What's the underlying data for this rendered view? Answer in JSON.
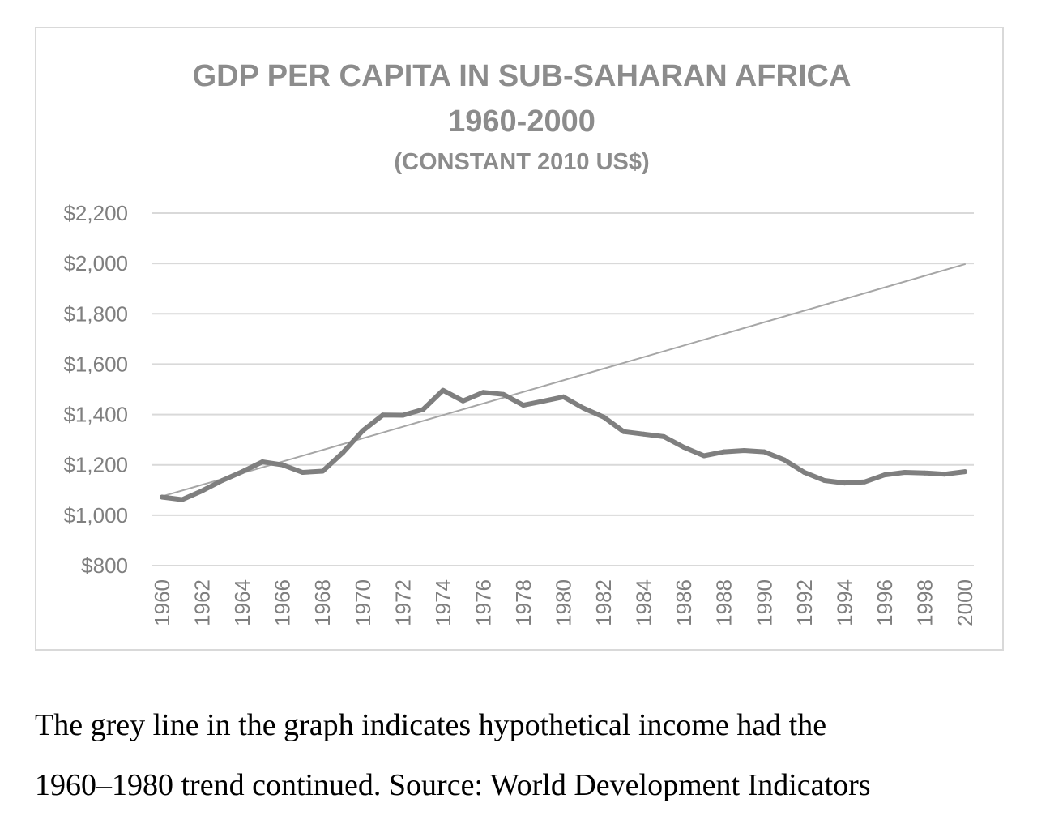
{
  "chart_data": {
    "type": "line",
    "title": "GDP PER CAPITA IN SUB-SAHARAN AFRICA",
    "subtitle": "1960-2000",
    "subtitle2": "(CONSTANT 2010 US$)",
    "xlabel": "",
    "ylabel": "",
    "ylim": [
      800,
      2200
    ],
    "y_ticks": [
      {
        "value": 800,
        "label": "$800"
      },
      {
        "value": 1000,
        "label": "$1,000"
      },
      {
        "value": 1200,
        "label": "$1,200"
      },
      {
        "value": 1400,
        "label": "$1,400"
      },
      {
        "value": 1600,
        "label": "$1,600"
      },
      {
        "value": 1800,
        "label": "$1,800"
      },
      {
        "value": 2000,
        "label": "$2,000"
      },
      {
        "value": 2200,
        "label": "$2,200"
      }
    ],
    "x_tick_labels": [
      "1960",
      "1962",
      "1964",
      "1966",
      "1968",
      "1970",
      "1972",
      "1974",
      "1976",
      "1978",
      "1980",
      "1982",
      "1984",
      "1986",
      "1988",
      "1990",
      "1992",
      "1994",
      "1996",
      "1998",
      "2000"
    ],
    "grid": true,
    "legend": "none",
    "x": [
      1960,
      1961,
      1962,
      1963,
      1964,
      1965,
      1966,
      1967,
      1968,
      1969,
      1970,
      1971,
      1972,
      1973,
      1974,
      1975,
      1976,
      1977,
      1978,
      1979,
      1980,
      1981,
      1982,
      1983,
      1984,
      1985,
      1986,
      1987,
      1988,
      1989,
      1990,
      1991,
      1992,
      1993,
      1994,
      1995,
      1996,
      1997,
      1998,
      1999,
      2000
    ],
    "series": [
      {
        "values": [
          1072,
          1062,
          1097,
          1138,
          1173,
          1212,
          1200,
          1170,
          1175,
          1248,
          1336,
          1398,
          1397,
          1420,
          1496,
          1454,
          1488,
          1480,
          1437,
          1453,
          1470,
          1425,
          1390,
          1332,
          1322,
          1312,
          1270,
          1236,
          1252,
          1257,
          1252,
          1220,
          1170,
          1138,
          1128,
          1132,
          1160,
          1170,
          1168,
          1163,
          1173
        ],
        "color": "#7f7f7f",
        "width": 6
      },
      {
        "x": [
          1960,
          2000
        ],
        "values": [
          1075,
          1997
        ],
        "color": "#a6a6a6",
        "width": 2
      }
    ],
    "colors": {
      "grid": "#d9d9d9",
      "text": "#7f7f7f",
      "title": "#8c8c8c"
    }
  },
  "caption": {
    "line1": "The grey line in the graph indicates hypothetical income had the",
    "line2": "1960–1980 trend continued. Source: World Development Indicators"
  }
}
